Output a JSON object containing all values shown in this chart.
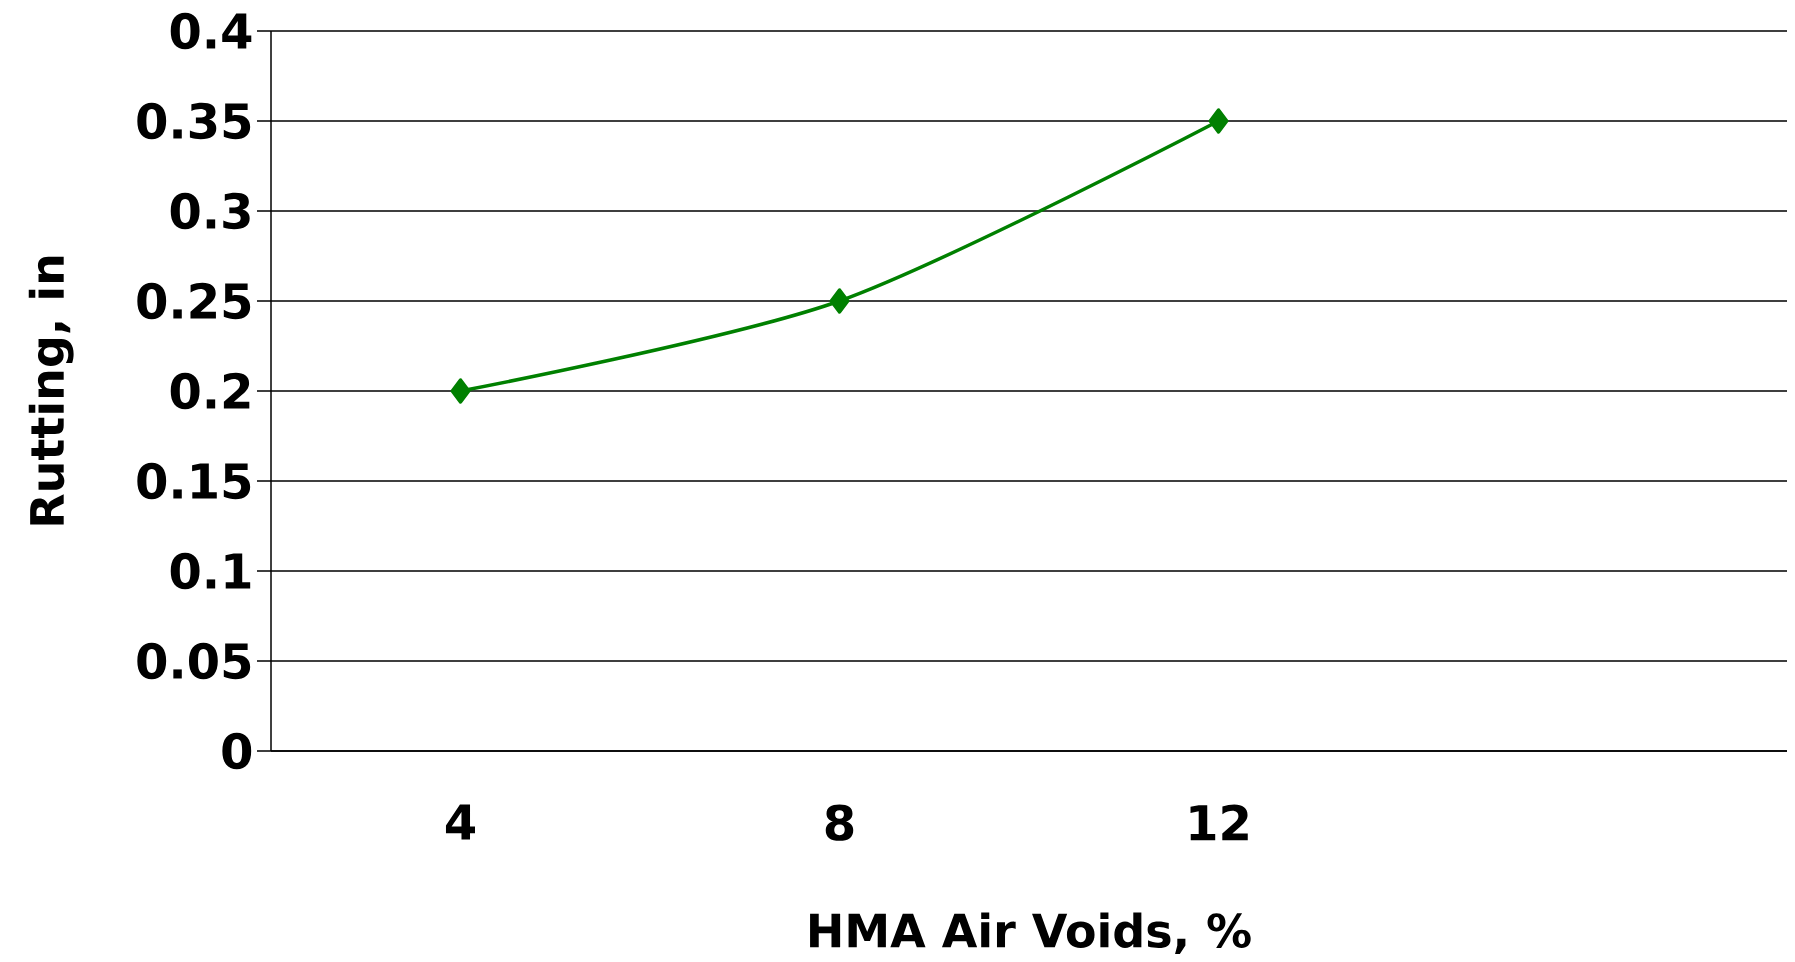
{
  "chart_data": {
    "type": "line",
    "xlabel": "HMA Air Voids, %",
    "ylabel": "Rutting, in",
    "categories": [
      "4",
      "8",
      "12",
      null
    ],
    "series": [
      {
        "color": "#008000",
        "values": [
          0.2,
          0.25,
          0.35,
          null
        ]
      }
    ],
    "ylim": [
      0,
      0.4
    ],
    "yticks": [
      0,
      0.05,
      0.1,
      0.15,
      0.2,
      0.25,
      0.3,
      0.35,
      0.4
    ],
    "grid": "y",
    "marker": "diamond",
    "line_style": "solid"
  }
}
